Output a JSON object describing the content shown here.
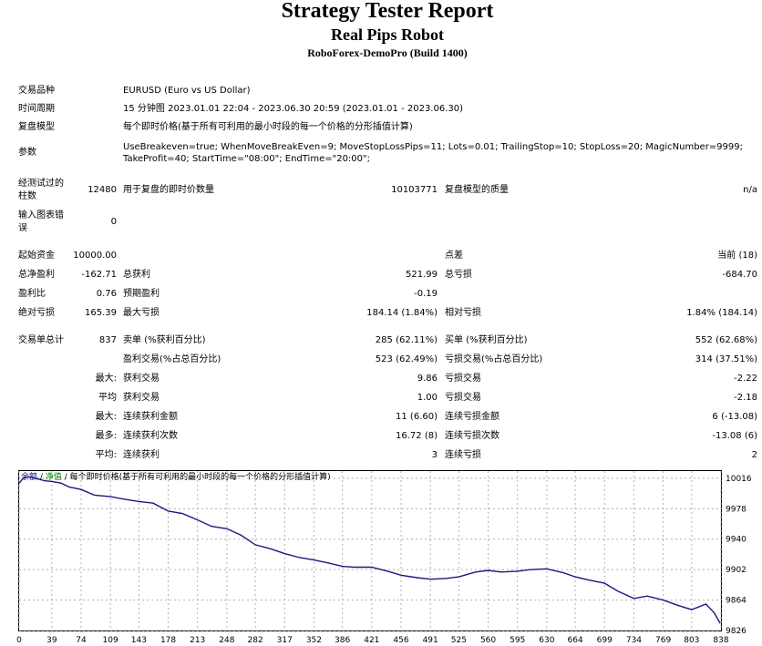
{
  "header": {
    "title": "Strategy Tester Report",
    "robot": "Real Pips Robot",
    "build": "RoboForex-DemoPro (Build 1400)"
  },
  "info": {
    "symbol_label": "交易品种",
    "symbol_value": "EURUSD (Euro vs US Dollar)",
    "period_label": "时间周期",
    "period_value": "15 分钟图 2023.01.01 22:04 - 2023.06.30 20:59 (2023.01.01 - 2023.06.30)",
    "model_label": "复盘模型",
    "model_value": "每个即时价格(基于所有可利用的最小时段的每一个价格的分形插值计算)",
    "params_label": "参数",
    "params_line1": "UseBreakeven=true; WhenMoveBreakEven=9; MoveStopLossPips=11; Lots=0.01; TrailingStop=10; StopLoss=20; MagicNumber=9999;",
    "params_line2": "TakeProfit=40; StartTime=\"08:00\"; EndTime=\"20:00\";"
  },
  "bars": {
    "label1": "经测试过的",
    "label2": "柱数",
    "value": "12480",
    "ticks_label": "用于复盘的即时价数量",
    "ticks_value": "10103771",
    "quality_label": "复盘模型的质量",
    "quality_value": "n/a"
  },
  "errors": {
    "label1": "输入图表错",
    "label2": "误",
    "value": "0"
  },
  "stats": {
    "deposit_label": "起始资金",
    "deposit_value": "10000.00",
    "spread_label": "点差",
    "spread_value": "当前 (18)",
    "net_label": "总净盈利",
    "net_value": "-162.71",
    "gross_profit_label": "总获利",
    "gross_profit_value": "521.99",
    "gross_loss_label": "总亏损",
    "gross_loss_value": "-684.70",
    "pf_label": "盈利比",
    "pf_value": "0.76",
    "payoff_label": "预期盈利",
    "payoff_value": "-0.19",
    "abs_dd_label": "绝对亏损",
    "abs_dd_value": "165.39",
    "max_dd_label": "最大亏损",
    "max_dd_value": "184.14 (1.84%)",
    "rel_dd_label": "相对亏损",
    "rel_dd_value": "1.84% (184.14)"
  },
  "trades": {
    "total_label": "交易单总计",
    "total_value": "837",
    "short_label": "卖单 (%获利百分比)",
    "short_value": "285 (62.11%)",
    "long_label": "买单 (%获利百分比)",
    "long_value": "552 (62.68%)",
    "profit_trades_label": "盈利交易(%占总百分比)",
    "profit_trades_value": "523 (62.49%)",
    "loss_trades_label": "亏损交易(%占总百分比)",
    "loss_trades_value": "314 (37.51%)",
    "rows": [
      {
        "prefix": "最大:",
        "l_label": "获利交易",
        "l_value": "9.86",
        "r_label": "亏损交易",
        "r_value": "-2.22"
      },
      {
        "prefix": "平均",
        "l_label": "获利交易",
        "l_value": "1.00",
        "r_label": "亏损交易",
        "r_value": "-2.18"
      },
      {
        "prefix": "最大:",
        "l_label": "连续获利金额",
        "l_value": "11 (6.60)",
        "r_label": "连续亏损金额",
        "r_value": "6 (-13.08)"
      },
      {
        "prefix": "最多:",
        "l_label": "连续获利次数",
        "l_value": "16.72 (8)",
        "r_label": "连续亏损次数",
        "r_value": "-13.08 (6)"
      },
      {
        "prefix": "平均:",
        "l_label": "连续获利",
        "l_value": "3",
        "r_label": "连续亏损",
        "r_value": "2"
      }
    ]
  },
  "chart_legend": {
    "balance": "余额",
    "sep1": " / ",
    "equity": "净值",
    "sep2": " / ",
    "model": "每个即时价格(基于所有可利用的最小时段的每一个价格的分形插值计算)"
  },
  "colors": {
    "balance_line": "#1a1a80",
    "legend_balance": "#1a1a80",
    "legend_equity": "#008000",
    "grid": "#b0b0b0"
  },
  "chart_data": {
    "type": "line",
    "title": "",
    "xlabel": "",
    "ylabel": "",
    "grid": true,
    "x_ticks": [
      0,
      39,
      74,
      109,
      143,
      178,
      213,
      248,
      282,
      317,
      352,
      386,
      421,
      456,
      491,
      525,
      560,
      595,
      630,
      664,
      699,
      734,
      769,
      803,
      838
    ],
    "y_ticks": [
      10016,
      9978,
      9940,
      9902,
      9864,
      9826
    ],
    "xlim": [
      0,
      838
    ],
    "ylim": [
      9826,
      10025
    ],
    "series": [
      {
        "x": [
          0,
          5,
          10,
          20,
          30,
          39,
          50,
          60,
          74,
          90,
          109,
          125,
          143,
          160,
          178,
          195,
          213,
          230,
          248,
          265,
          282,
          300,
          317,
          335,
          352,
          370,
          386,
          400,
          421,
          440,
          456,
          475,
          491,
          510,
          525,
          545,
          560,
          575,
          595,
          610,
          630,
          650,
          664,
          680,
          699,
          715,
          734,
          750,
          769,
          785,
          803,
          820,
          830,
          837
        ],
        "y": [
          10010,
          10016,
          10018,
          10016,
          10013,
          10012,
          10010,
          10005,
          10002,
          9995,
          9993,
          9990,
          9987,
          9985,
          9975,
          9972,
          9964,
          9956,
          9953,
          9945,
          9933,
          9928,
          9922,
          9917,
          9914,
          9910,
          9906,
          9905,
          9905,
          9900,
          9895,
          9892,
          9890,
          9891,
          9893,
          9899,
          9901,
          9899,
          9900,
          9902,
          9903,
          9898,
          9893,
          9889,
          9885,
          9875,
          9866,
          9869,
          9864,
          9858,
          9852,
          9859,
          9848,
          9835
        ]
      }
    ]
  }
}
